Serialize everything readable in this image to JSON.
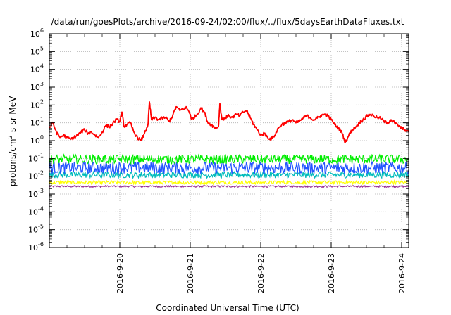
{
  "chart_data": {
    "type": "line",
    "title": "/data/run/goesPlots/archive/2016-09-24/02:00/flux/../flux/5daysEarthDataFluxes.txt",
    "xlabel": "Coordinated Universal Time (UTC)",
    "ylabel": "protons/cm²-s-sr-MeV",
    "ylabel_parts": {
      "prefix": "protons/cm",
      "sup": "2",
      "suffix": "-s-sr-MeV"
    },
    "yscale": "log",
    "ylim_exponents": [
      -6,
      6
    ],
    "ytick_exponents": [
      -6,
      -5,
      -4,
      -3,
      -2,
      -1,
      0,
      1,
      2,
      3,
      4,
      5,
      6
    ],
    "ytick_base": "10",
    "xlim_days": [
      0,
      5.1
    ],
    "xticks": [
      {
        "label": "2016-9-20",
        "day": 1.0
      },
      {
        "label": "2016-9-21",
        "day": 2.0
      },
      {
        "label": "2016-9-22",
        "day": 3.0
      },
      {
        "label": "2016-9-23",
        "day": 4.0
      },
      {
        "label": "2016-9-24",
        "day": 5.0
      }
    ],
    "grid": true,
    "legend": "none",
    "series": [
      {
        "color": "#ff0000",
        "kind": "primary",
        "x": [
          0.0,
          0.05,
          0.1,
          0.15,
          0.2,
          0.25,
          0.3,
          0.35,
          0.4,
          0.45,
          0.5,
          0.55,
          0.6,
          0.65,
          0.7,
          0.75,
          0.8,
          0.85,
          0.9,
          0.95,
          1.0,
          1.03,
          1.06,
          1.1,
          1.15,
          1.2,
          1.25,
          1.3,
          1.35,
          1.4,
          1.42,
          1.45,
          1.5,
          1.55,
          1.6,
          1.65,
          1.7,
          1.75,
          1.8,
          1.85,
          1.9,
          1.95,
          2.0,
          2.02,
          2.05,
          2.1,
          2.15,
          2.2,
          2.25,
          2.3,
          2.35,
          2.4,
          2.42,
          2.45,
          2.5,
          2.55,
          2.6,
          2.65,
          2.7,
          2.75,
          2.8,
          2.85,
          2.9,
          2.95,
          3.0,
          3.05,
          3.1,
          3.15,
          3.2,
          3.25,
          3.3,
          3.35,
          3.4,
          3.45,
          3.5,
          3.55,
          3.6,
          3.65,
          3.7,
          3.75,
          3.8,
          3.85,
          3.9,
          3.95,
          4.0,
          4.05,
          4.1,
          4.15,
          4.2,
          4.25,
          4.3,
          4.35,
          4.4,
          4.45,
          4.5,
          4.55,
          4.6,
          4.65,
          4.7,
          4.75,
          4.8,
          4.85,
          4.9,
          4.95,
          5.0,
          5.05,
          5.1
        ],
        "y": [
          5,
          10,
          3,
          1.5,
          2,
          1.5,
          1.2,
          1.5,
          2,
          3,
          4,
          2.5,
          3,
          2,
          1.5,
          3,
          7,
          6,
          9,
          15,
          12,
          40,
          6,
          8,
          10,
          3,
          1.5,
          1,
          2.5,
          8,
          150,
          15,
          20,
          15,
          18,
          20,
          12,
          25,
          80,
          50,
          60,
          70,
          30,
          15,
          20,
          30,
          70,
          40,
          10,
          8,
          5,
          6,
          120,
          15,
          20,
          25,
          20,
          30,
          25,
          40,
          50,
          20,
          8,
          4,
          2,
          2.5,
          1.5,
          1.2,
          2,
          5,
          8,
          10,
          12,
          15,
          10,
          12,
          18,
          25,
          20,
          15,
          18,
          25,
          30,
          25,
          15,
          8,
          5,
          3,
          0.8,
          2,
          4,
          6,
          10,
          15,
          22,
          30,
          25,
          20,
          18,
          12,
          10,
          15,
          10,
          7,
          5,
          4,
          3
        ]
      },
      {
        "color": "#00ee00",
        "kind": "band",
        "center": 0.09,
        "spread": 1.8
      },
      {
        "color": "#2255ff",
        "kind": "band",
        "center": 0.03,
        "spread": 2.2
      },
      {
        "color": "#00bbbb",
        "kind": "band",
        "center": 0.012,
        "spread": 1.5
      },
      {
        "color": "#ffff00",
        "kind": "band",
        "center": 0.0045,
        "spread": 1.25
      },
      {
        "color": "#993399",
        "kind": "band",
        "center": 0.0027,
        "spread": 1.12
      }
    ]
  }
}
